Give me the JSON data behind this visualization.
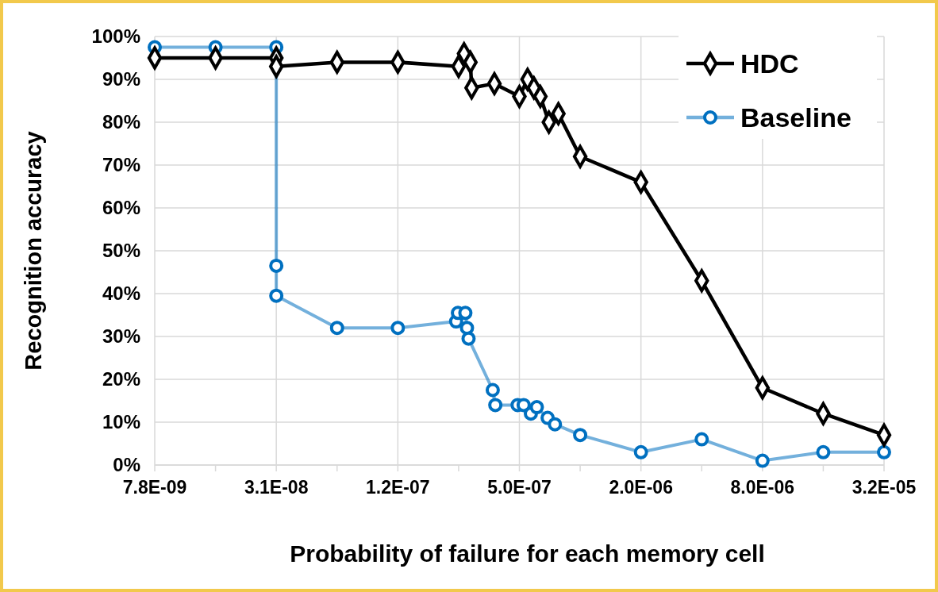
{
  "chart_data": {
    "type": "line",
    "xlabel": "Probability of failure for each memory cell",
    "ylabel": "Recognition accuracy",
    "log": "x",
    "xlim": [
      7.8125e-09,
      3.2e-05
    ],
    "xticks": [
      {
        "value": 7.8125e-09,
        "label": "7.8E-09"
      },
      {
        "value": 1.5625e-08,
        "label": null
      },
      {
        "value": 3.125e-08,
        "label": "3.1E-08"
      },
      {
        "value": 6.25e-08,
        "label": null
      },
      {
        "value": 1.25e-07,
        "label": "1.2E-07"
      },
      {
        "value": 2.5e-07,
        "label": null
      },
      {
        "value": 5e-07,
        "label": "5.0E-07"
      },
      {
        "value": 1e-06,
        "label": null
      },
      {
        "value": 2e-06,
        "label": "2.0E-06"
      },
      {
        "value": 4e-06,
        "label": null
      },
      {
        "value": 8e-06,
        "label": "8.0E-06"
      },
      {
        "value": 1.6e-05,
        "label": null
      },
      {
        "value": 3.2e-05,
        "label": "3.2E-05"
      }
    ],
    "ylim": [
      0,
      100
    ],
    "yticks": [
      {
        "value": 0,
        "label": "0%"
      },
      {
        "value": 10,
        "label": "10%"
      },
      {
        "value": 20,
        "label": "20%"
      },
      {
        "value": 30,
        "label": "30%"
      },
      {
        "value": 40,
        "label": "40%"
      },
      {
        "value": 50,
        "label": "50%"
      },
      {
        "value": 60,
        "label": "60%"
      },
      {
        "value": 70,
        "label": "70%"
      },
      {
        "value": 80,
        "label": "80%"
      },
      {
        "value": 90,
        "label": "90%"
      },
      {
        "value": 100,
        "label": "100%"
      }
    ],
    "grid": true,
    "legend": "top right",
    "line_style": "solid",
    "series": [
      {
        "name": "HDC",
        "color": "#000000",
        "marker": "diamond",
        "x": [
          7.8125e-09,
          1.5625e-08,
          3.125e-08,
          3.125e-08,
          6.25e-08,
          1.25e-07,
          2.5e-07,
          2.66e-07,
          2.86e-07,
          2.9e-07,
          3.76e-07,
          5e-07,
          5.49e-07,
          5.9e-07,
          6.35e-07,
          7e-07,
          7.8e-07,
          1e-06,
          2e-06,
          4e-06,
          8e-06,
          1.6e-05,
          3.2e-05
        ],
        "values": [
          95,
          95,
          95,
          93,
          94,
          94,
          93,
          96,
          94,
          88,
          89,
          86,
          90,
          88,
          86,
          80,
          82,
          72,
          66,
          43,
          18,
          12,
          7
        ]
      },
      {
        "name": "Baseline",
        "color": "#0070c0",
        "marker": "circle",
        "x": [
          7.8125e-09,
          1.5625e-08,
          3.125e-08,
          3.125e-08,
          3.125e-08,
          6.25e-08,
          1.25e-07,
          2.43e-07,
          2.48e-07,
          2.7e-07,
          2.75e-07,
          2.8e-07,
          3.69e-07,
          3.8e-07,
          4.9e-07,
          5.25e-07,
          5.7e-07,
          6.1e-07,
          6.9e-07,
          7.5e-07,
          1e-06,
          2e-06,
          4e-06,
          8e-06,
          1.6e-05,
          3.2e-05
        ],
        "values": [
          97.5,
          97.5,
          97.5,
          46.5,
          39.5,
          32,
          32,
          33.5,
          35.5,
          35.5,
          32,
          29.5,
          17.5,
          14,
          14,
          14,
          12,
          13.5,
          11,
          9.5,
          7,
          3,
          6,
          1,
          3,
          3
        ]
      }
    ]
  }
}
